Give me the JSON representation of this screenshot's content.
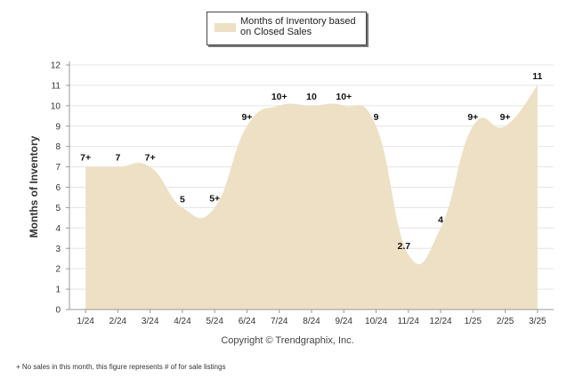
{
  "legend": {
    "label": "Months of Inventory based on Closed Sales"
  },
  "copyright": "Copyright © Trendgraphix, Inc.",
  "footnote": "+ No sales in this month, this figure represents # of for sale listings",
  "colors": {
    "fill": "#ede0c4",
    "grid": "#e4e4e4",
    "axis": "#999999",
    "text": "#333333",
    "label": "#111111"
  },
  "chart_data": {
    "type": "area",
    "ylabel": "Months of Inventory",
    "xlabel": "",
    "ylim": [
      0,
      12
    ],
    "yticks": [
      0,
      1,
      2,
      3,
      4,
      5,
      6,
      7,
      8,
      9,
      10,
      11,
      12
    ],
    "grid": true,
    "legend_position": "top-center",
    "categories": [
      "1/24",
      "2/24",
      "3/24",
      "4/24",
      "5/24",
      "6/24",
      "7/24",
      "8/24",
      "9/24",
      "10/24",
      "11/24",
      "12/24",
      "1/25",
      "2/25",
      "3/25"
    ],
    "series": [
      {
        "name": "Months of Inventory based on Closed Sales",
        "values": [
          7,
          7,
          7,
          5,
          5,
          9,
          10,
          10,
          10,
          9,
          2.7,
          4,
          9,
          9,
          11
        ],
        "labels": [
          "7+",
          "7",
          "7+",
          "5",
          "5+",
          "9+",
          "10+",
          "10",
          "10+",
          "9",
          "2.7",
          "4",
          "9+",
          "9+",
          "11"
        ]
      }
    ]
  }
}
